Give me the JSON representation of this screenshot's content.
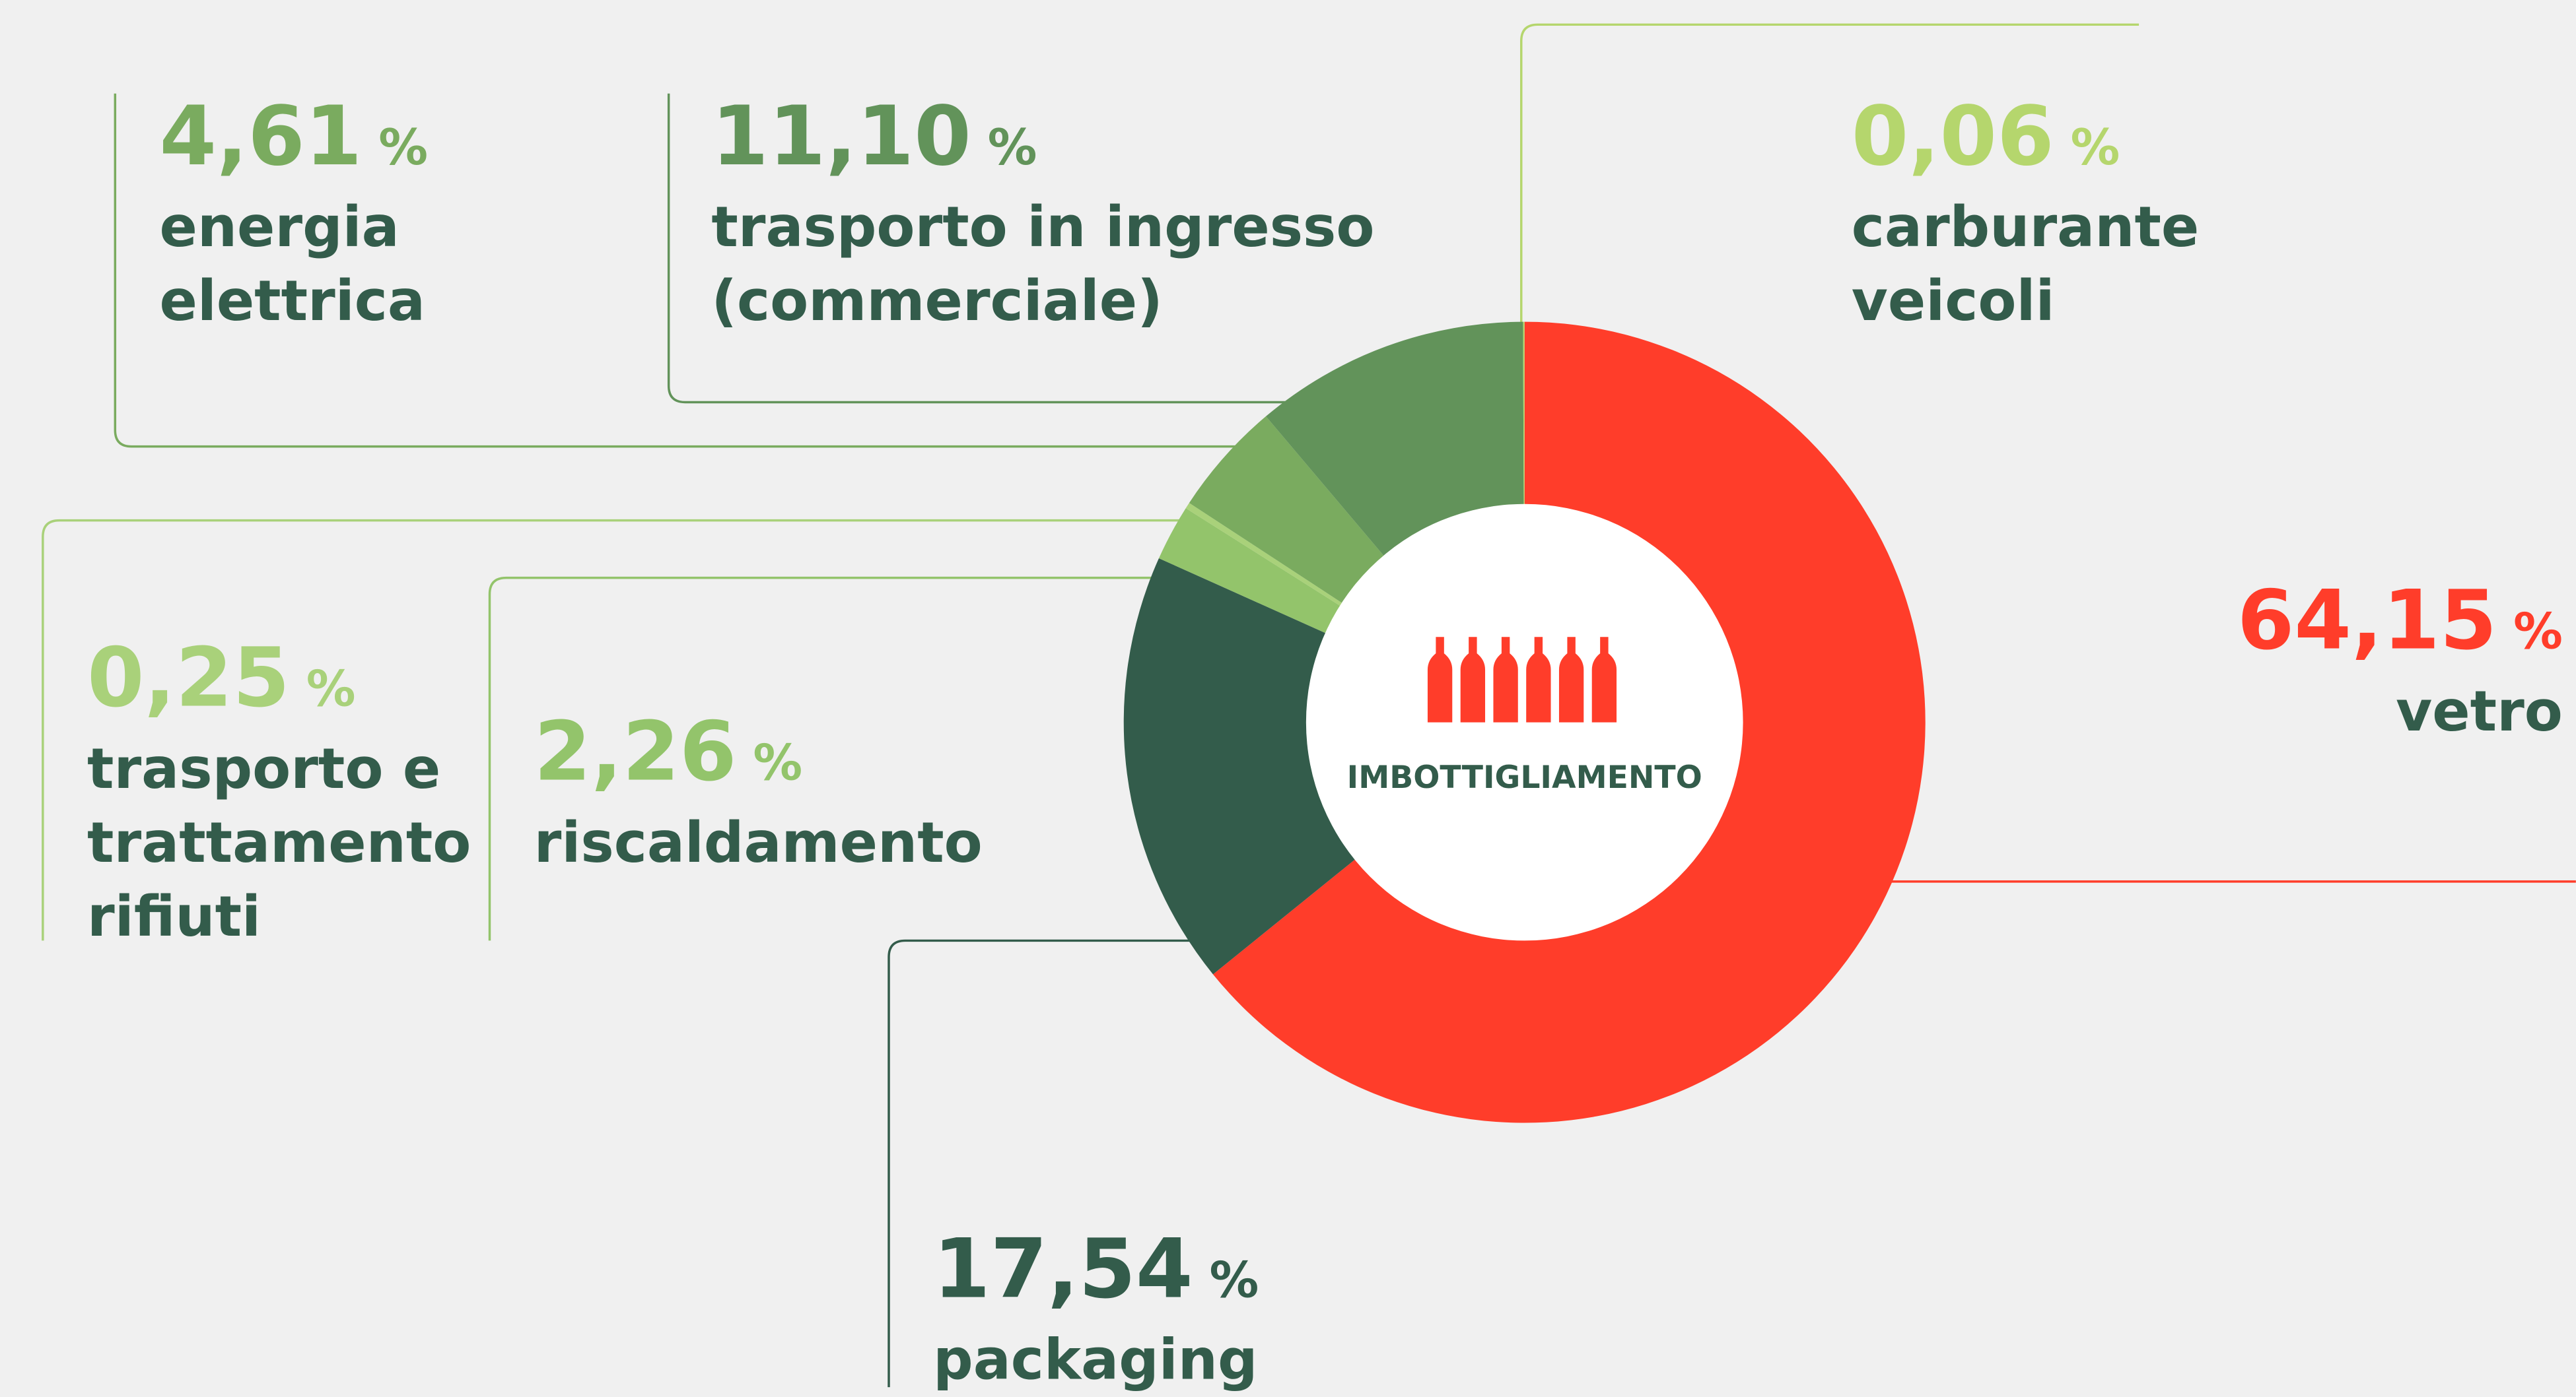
{
  "chart_data": {
    "type": "pie",
    "donut": true,
    "center_label": "IMBOTTIGLIAMENTO",
    "value_suffix": "%",
    "categories": [
      "vetro",
      "packaging",
      "riscaldamento",
      "trasporto e\ntrattamento\nrifiuti",
      "energia\nelettrica",
      "trasporto in ingresso\n(commerciale)",
      "carburante\nveicoli"
    ],
    "values": [
      64.15,
      17.54,
      2.26,
      0.25,
      4.61,
      11.1,
      0.06
    ],
    "value_labels": [
      "64,15",
      "17,54",
      "2,26",
      "0,25",
      "4,61",
      "11,10",
      "0,06"
    ],
    "colors": [
      "#ff3d2a",
      "#335c4b",
      "#93c46b",
      "#a9d17a",
      "#7aab5f",
      "#62935a",
      "#b5d66d"
    ]
  }
}
